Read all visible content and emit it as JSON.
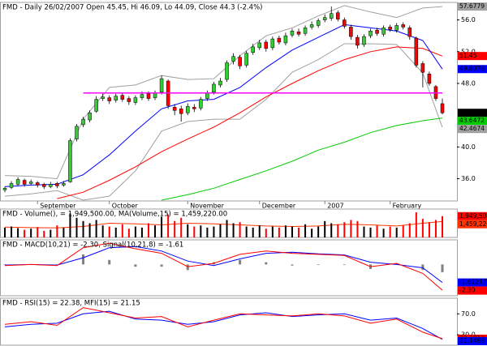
{
  "chart_data": [
    {
      "type": "candlestick",
      "title": "FMD - Daily 26/02/2007 Open 45.45, Hi 46.09, Lo 44.09, Close 44.3 (-2.4%)",
      "categories": [
        null,
        null,
        null,
        null,
        null,
        "September",
        null,
        null,
        null,
        null,
        null,
        null,
        null,
        null,
        null,
        null,
        "October",
        null,
        null,
        null,
        null,
        null,
        null,
        null,
        null,
        null,
        null,
        null,
        "November",
        null,
        null,
        null,
        null,
        null,
        null,
        null,
        null,
        null,
        null,
        "December",
        null,
        null,
        null,
        null,
        null,
        null,
        null,
        null,
        null,
        "2007",
        null,
        null,
        null,
        null,
        null,
        null,
        null,
        null,
        null,
        "February",
        null,
        null,
        null,
        null,
        null,
        null,
        null,
        null
      ],
      "open": [
        34.6,
        34.9,
        35.3,
        35.8,
        35.4,
        35.5,
        35.3,
        35.0,
        35.4,
        35.2,
        35.6,
        41.0,
        42.8,
        43.4,
        44.5,
        46.1,
        46.2,
        45.9,
        46.5,
        46.1,
        45.6,
        46.2,
        46.7,
        46.2,
        46.9,
        48.3,
        45.0,
        44.8,
        44.3,
        45.0,
        44.9,
        46.1,
        46.9,
        47.8,
        48.5,
        50.8,
        51.3,
        50.3,
        51.9,
        52.5,
        53.2,
        52.5,
        53.7,
        53.1,
        54.1,
        54.5,
        54.3,
        55.1,
        55.3,
        56.0,
        56.2,
        56.9,
        56.0,
        55.1,
        53.8,
        52.9,
        54.0,
        54.7,
        54.2,
        55.1,
        54.7,
        55.4,
        55.0,
        53.7,
        50.5,
        49.2,
        47.6,
        45.45
      ],
      "high": [
        35.0,
        35.7,
        36.2,
        36.0,
        35.9,
        35.7,
        35.5,
        35.6,
        35.6,
        35.7,
        41.1,
        42.9,
        43.8,
        44.6,
        46.4,
        46.7,
        46.5,
        46.7,
        46.8,
        46.4,
        46.5,
        47.0,
        47.0,
        47.1,
        49.0,
        48.5,
        45.4,
        45.2,
        45.5,
        45.4,
        46.3,
        47.1,
        48.2,
        48.7,
        50.9,
        51.8,
        51.6,
        52.1,
        53.0,
        53.5,
        53.5,
        53.9,
        54.0,
        54.4,
        54.9,
        54.9,
        55.3,
        55.8,
        56.2,
        56.7,
        57.68,
        57.2,
        56.3,
        55.4,
        54.1,
        54.2,
        54.9,
        55.0,
        55.3,
        55.4,
        55.6,
        55.7,
        55.3,
        53.9,
        50.8,
        49.5,
        47.8,
        46.09
      ],
      "low": [
        34.3,
        34.7,
        35.1,
        35.0,
        35.2,
        34.9,
        34.7,
        34.8,
        34.8,
        35.0,
        35.5,
        40.7,
        42.5,
        43.1,
        44.3,
        45.8,
        45.4,
        45.6,
        45.7,
        45.3,
        45.3,
        45.9,
        45.8,
        45.9,
        46.6,
        44.8,
        44.0,
        43.2,
        44.0,
        44.4,
        44.6,
        45.8,
        46.6,
        47.5,
        48.2,
        50.4,
        49.8,
        50.0,
        51.6,
        52.2,
        52.0,
        52.2,
        52.9,
        52.8,
        53.8,
        53.9,
        54.0,
        54.8,
        55.0,
        55.7,
        55.9,
        55.8,
        54.9,
        53.5,
        52.4,
        52.6,
        53.7,
        54.0,
        53.9,
        54.5,
        54.4,
        54.8,
        53.5,
        50.0,
        47.5,
        47.7,
        45.8,
        44.09
      ],
      "close": [
        34.8,
        35.4,
        35.9,
        35.3,
        35.6,
        35.2,
        35.0,
        35.3,
        35.1,
        35.4,
        40.8,
        42.6,
        43.5,
        44.3,
        46.0,
        46.3,
        45.8,
        46.4,
        46.0,
        45.7,
        46.2,
        46.6,
        46.1,
        46.8,
        48.6,
        45.2,
        44.6,
        44.2,
        45.1,
        44.8,
        46.0,
        46.8,
        47.9,
        48.3,
        50.6,
        51.4,
        50.2,
        51.8,
        52.6,
        53.1,
        52.4,
        53.6,
        53.2,
        54.0,
        54.6,
        54.2,
        55.0,
        55.4,
        55.9,
        56.3,
        56.8,
        56.1,
        55.2,
        53.9,
        52.8,
        53.9,
        54.6,
        54.3,
        55.0,
        54.8,
        55.3,
        55.1,
        53.9,
        50.3,
        49.4,
        48.0,
        46.1,
        44.3
      ],
      "last_label": "44.3",
      "up_color": "#33cc33",
      "down_color": "#ff0000",
      "ylim": [
        33.2,
        58.2
      ],
      "yticks": [
        {
          "value": 36,
          "label": "36.0"
        },
        {
          "value": 40,
          "label": "40.0"
        },
        {
          "value": 48,
          "label": "48.0"
        },
        {
          "value": 52,
          "label": "52.0"
        },
        {
          "value": 56,
          "label": "56.0"
        }
      ],
      "series": [
        {
          "color": "#a0a0a0",
          "x": [
            0,
            4,
            8,
            12,
            16,
            20,
            24,
            28,
            32,
            36,
            40,
            44,
            48,
            52,
            56,
            60,
            64,
            67
          ],
          "values": [
            36.4,
            36.3,
            36.0,
            43.5,
            47.5,
            47.8,
            49.0,
            48.5,
            48.6,
            51.5,
            54.0,
            55.0,
            56.5,
            57.8,
            57.0,
            56.3,
            57.5,
            57.6779
          ],
          "last_label": "57.6779"
        },
        {
          "color": "#a0a0a0",
          "x": [
            0,
            4,
            8,
            12,
            16,
            20,
            24,
            28,
            32,
            36,
            40,
            44,
            48,
            52,
            56,
            60,
            64,
            67
          ],
          "values": [
            33.8,
            34.1,
            34.5,
            33.3,
            33.8,
            37.0,
            42.0,
            43.2,
            43.5,
            43.5,
            46.0,
            49.4,
            51.0,
            53.0,
            53.0,
            52.9,
            49.3,
            42.4674
          ],
          "last_label": "42.4674"
        },
        {
          "color": "#00cc00",
          "x": [
            0,
            4,
            8,
            12,
            16,
            20,
            24,
            28,
            32,
            36,
            40,
            44,
            48,
            52,
            56,
            60,
            64,
            67
          ],
          "values": [
            null,
            null,
            null,
            null,
            null,
            null,
            33.3,
            34.0,
            34.8,
            35.9,
            37.0,
            38.2,
            39.6,
            40.6,
            41.8,
            42.7,
            43.3,
            43.6472
          ],
          "last_label": "43.6472"
        },
        {
          "color": "#ff0000",
          "x": [
            0,
            4,
            8,
            12,
            16,
            20,
            24,
            28,
            32,
            36,
            40,
            44,
            48,
            52,
            56,
            60,
            64,
            67
          ],
          "values": [
            null,
            null,
            33.5,
            34.3,
            35.8,
            37.5,
            39.4,
            41.0,
            42.5,
            44.3,
            46.3,
            48.0,
            49.6,
            51.0,
            52.0,
            52.6,
            52.4,
            51.45
          ],
          "last_label": "51.45"
        },
        {
          "color": "#0000ff",
          "x": [
            0,
            4,
            8,
            12,
            16,
            20,
            24,
            28,
            32,
            36,
            40,
            44,
            48,
            52,
            56,
            60,
            64,
            67
          ],
          "values": [
            35.0,
            35.2,
            35.3,
            36.5,
            39.0,
            42.0,
            44.8,
            45.8,
            46.0,
            47.5,
            50.0,
            52.2,
            53.8,
            55.4,
            55.0,
            54.6,
            53.4,
            49.8076
          ],
          "last_label": "49.8076"
        }
      ],
      "hline": {
        "value": 46.8,
        "color": "#ff00ff",
        "x": [
          12,
          67
        ]
      }
    },
    {
      "type": "bar",
      "title": "FMD - Volume(), = 1,949,500.00, MA(Volume,15) = 1,459,220.00",
      "values": [
        900000,
        1000000,
        850000,
        700000,
        800000,
        950000,
        600000,
        700000,
        1100000,
        900000,
        2200000,
        1800000,
        1500000,
        1300000,
        1600000,
        1100000,
        1000000,
        900000,
        1200000,
        800000,
        1000000,
        900000,
        1300000,
        1100000,
        1900000,
        2100000,
        1500000,
        1800000,
        1200000,
        1000000,
        1100000,
        900000,
        1000000,
        1200000,
        1600000,
        1300000,
        1400000,
        1000000,
        900000,
        1100000,
        800000,
        1000000,
        900000,
        1100000,
        1000000,
        900000,
        1200000,
        800000,
        1000000,
        1500000,
        1300000,
        1200000,
        1400000,
        1600000,
        1500000,
        1000000,
        900000,
        1100000,
        800000,
        1000000,
        900000,
        1100000,
        1300000,
        2300000,
        1700000,
        1400000,
        1600000,
        1949500
      ],
      "last_label": "1,949,500",
      "color": "#ff0000",
      "up_color": "#000000",
      "ylim": [
        0,
        2600000
      ],
      "series": [
        {
          "color": "#ff3300",
          "x": [
            0,
            4,
            8,
            12,
            16,
            20,
            24,
            28,
            32,
            36,
            40,
            44,
            48,
            52,
            56,
            60,
            64,
            67
          ],
          "values": [
            950000,
            900000,
            880000,
            1000000,
            1300000,
            1250000,
            1150000,
            1300000,
            1250000,
            1150000,
            1050000,
            1000000,
            1050000,
            1200000,
            1150000,
            1050000,
            1300000,
            1459220
          ],
          "last_label": "1,459,220"
        }
      ]
    },
    {
      "type": "line",
      "title": "FMD - MACD(10,21) = -2.30, Signal(10,21,8) = -1.61",
      "ylim": [
        -2.8,
        2.2
      ],
      "series": [
        {
          "type": "bar",
          "color": "#808080",
          "x": [
            0,
            4,
            8,
            12,
            16,
            20,
            24,
            28,
            32,
            36,
            40,
            44,
            48,
            52,
            56,
            60,
            64,
            67
          ],
          "values": [
            -0.05,
            0,
            -0.05,
            0.9,
            0.4,
            -0.2,
            -0.2,
            -0.5,
            0.2,
            0.4,
            0.2,
            -0.1,
            -0.05,
            -0.05,
            -0.4,
            0.1,
            -0.5,
            -0.69
          ]
        },
        {
          "color": "#0000ff",
          "x": [
            0,
            4,
            8,
            12,
            16,
            20,
            24,
            28,
            32,
            36,
            40,
            44,
            48,
            52,
            56,
            60,
            64,
            67
          ],
          "values": [
            -0.05,
            0.0,
            -0.05,
            0.6,
            1.5,
            1.6,
            1.2,
            0.3,
            -0.1,
            0.5,
            1.0,
            1.1,
            0.95,
            0.85,
            0.2,
            0.0,
            -0.3,
            -1.61217
          ],
          "last_label": "-1.61217"
        },
        {
          "color": "#ff0000",
          "x": [
            0,
            4,
            8,
            12,
            16,
            20,
            24,
            28,
            32,
            36,
            40,
            44,
            48,
            52,
            56,
            60,
            64,
            67
          ],
          "values": [
            -0.1,
            0.0,
            -0.1,
            1.5,
            1.9,
            1.4,
            1.0,
            -0.2,
            0.1,
            0.9,
            1.2,
            1.0,
            0.9,
            0.8,
            -0.2,
            0.1,
            -0.8,
            -2.3
          ],
          "last_label": "-2.30"
        }
      ]
    },
    {
      "type": "line",
      "title": "FMD - RSI(15) = 22.38, MFI(15) = 21.15",
      "ylim": [
        10,
        100
      ],
      "yticks": [
        {
          "value": 70,
          "label": "70.0"
        },
        {
          "value": 30,
          "label": "30.0"
        }
      ],
      "series": [
        {
          "color": "#0000ff",
          "x": [
            0,
            4,
            8,
            12,
            16,
            20,
            24,
            28,
            32,
            36,
            40,
            44,
            48,
            52,
            56,
            60,
            64,
            67
          ],
          "values": [
            45,
            50,
            52,
            70,
            75,
            60,
            58,
            50,
            55,
            68,
            72,
            65,
            68,
            70,
            58,
            62,
            42,
            21.1496
          ],
          "last_label": "21.1496"
        },
        {
          "color": "#ff0000",
          "x": [
            0,
            4,
            8,
            12,
            16,
            20,
            24,
            28,
            32,
            36,
            40,
            44,
            48,
            52,
            56,
            60,
            64,
            67
          ],
          "values": [
            50,
            55,
            48,
            82,
            72,
            62,
            65,
            45,
            58,
            70,
            68,
            66,
            70,
            66,
            52,
            60,
            35,
            22.3812
          ],
          "last_label": "22.3812"
        }
      ]
    }
  ]
}
